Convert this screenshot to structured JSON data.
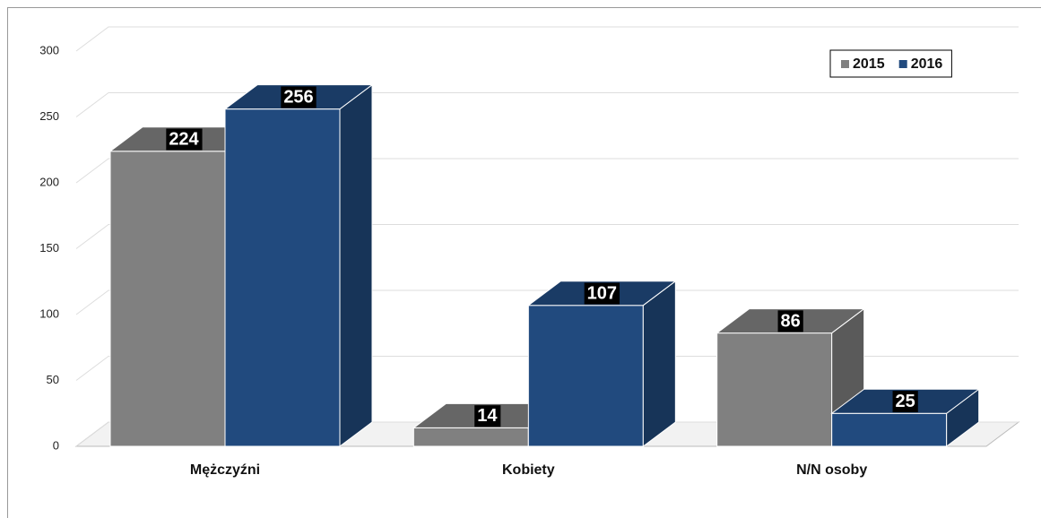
{
  "chart_data": {
    "type": "bar3d",
    "categories": [
      "Mężczyźni",
      "Kobiety",
      "N/N osoby"
    ],
    "series": [
      {
        "name": "2015",
        "color": "#808080",
        "values": [
          224,
          14,
          86
        ]
      },
      {
        "name": "2016",
        "color": "#214a7e",
        "values": [
          256,
          107,
          25
        ]
      }
    ],
    "ylim": [
      0,
      300
    ],
    "yticks": [
      0,
      50,
      100,
      150,
      200,
      250,
      300
    ],
    "grid": true,
    "legend": "top-right"
  }
}
